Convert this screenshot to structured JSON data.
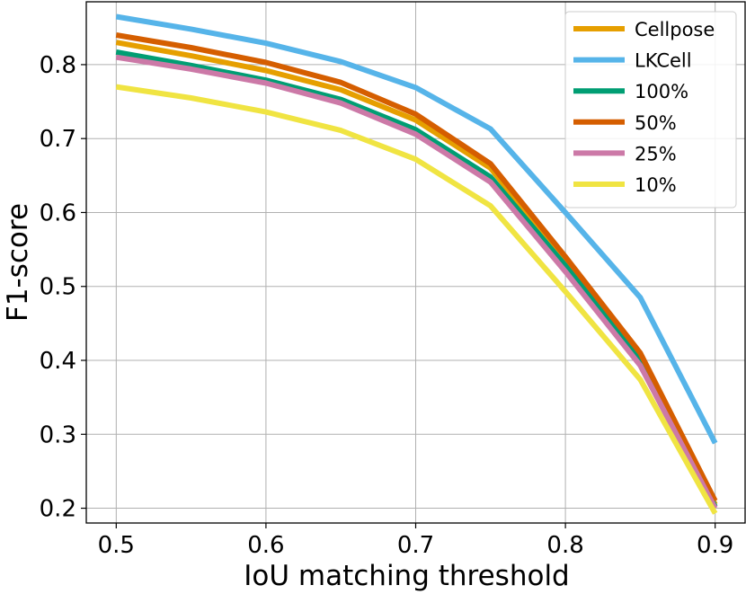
{
  "chart_data": {
    "type": "line",
    "title": "",
    "xlabel": "IoU matching threshold",
    "ylabel": "F1-score",
    "xlim": [
      0.48,
      0.92
    ],
    "ylim": [
      0.18,
      0.885
    ],
    "xticks": [
      0.5,
      0.6,
      0.7,
      0.8,
      0.9
    ],
    "yticks": [
      0.2,
      0.3,
      0.4,
      0.5,
      0.6,
      0.7,
      0.8
    ],
    "xtick_labels": [
      "0.5",
      "0.6",
      "0.7",
      "0.8",
      "0.9"
    ],
    "ytick_labels": [
      "0.2",
      "0.3",
      "0.4",
      "0.5",
      "0.6",
      "0.7",
      "0.8"
    ],
    "grid": true,
    "legend_position": "top-right",
    "x": [
      0.5,
      0.55,
      0.6,
      0.65,
      0.7,
      0.75,
      0.8,
      0.85,
      0.9
    ],
    "series": [
      {
        "name": "Cellpose",
        "color": "#E69F00",
        "values": [
          0.83,
          0.812,
          0.792,
          0.766,
          0.725,
          0.66,
          0.535,
          0.405,
          0.205
        ]
      },
      {
        "name": "LKCell",
        "color": "#56B4E9",
        "values": [
          0.865,
          0.848,
          0.829,
          0.804,
          0.769,
          0.713,
          0.6,
          0.485,
          0.288
        ]
      },
      {
        "name": "100%",
        "color": "#009E73",
        "values": [
          0.817,
          0.799,
          0.779,
          0.753,
          0.712,
          0.648,
          0.528,
          0.4,
          0.202
        ]
      },
      {
        "name": "50%",
        "color": "#D55E00",
        "values": [
          0.84,
          0.823,
          0.803,
          0.776,
          0.733,
          0.666,
          0.54,
          0.41,
          0.21
        ]
      },
      {
        "name": "25%",
        "color": "#CC79A7",
        "values": [
          0.81,
          0.794,
          0.775,
          0.748,
          0.706,
          0.641,
          0.52,
          0.393,
          0.2
        ]
      },
      {
        "name": "10%",
        "color": "#F0E442",
        "values": [
          0.77,
          0.755,
          0.736,
          0.711,
          0.672,
          0.609,
          0.493,
          0.374,
          0.193
        ]
      }
    ]
  }
}
